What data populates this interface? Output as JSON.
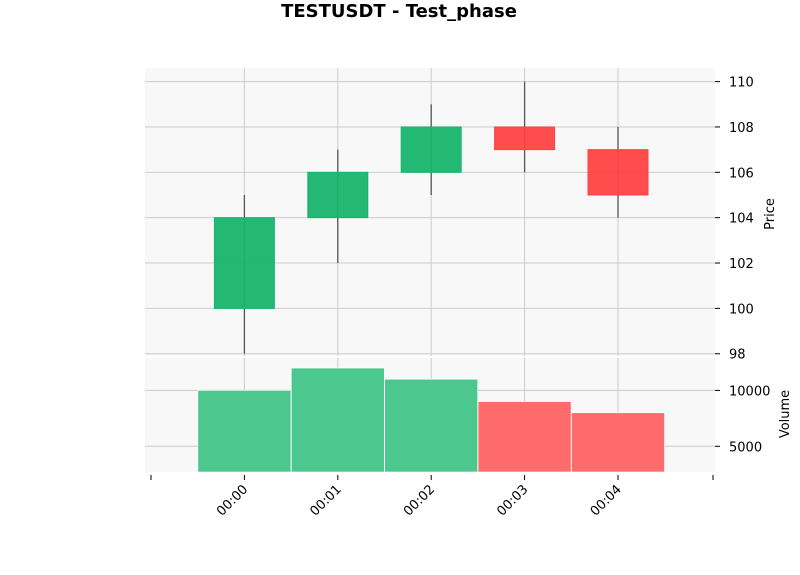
{
  "chart_data": {
    "type": "candlestick",
    "title": "TESTUSDT - Test_phase",
    "categories": [
      "00:00",
      "00:01",
      "00:02",
      "00:03",
      "00:04"
    ],
    "candles": [
      {
        "open": 100,
        "high": 105,
        "low": 98,
        "close": 104
      },
      {
        "open": 104,
        "high": 107,
        "low": 102,
        "close": 106
      },
      {
        "open": 106,
        "high": 109,
        "low": 105,
        "close": 108
      },
      {
        "open": 108,
        "high": 110,
        "low": 106,
        "close": 107
      },
      {
        "open": 107,
        "high": 108,
        "low": 104,
        "close": 105
      }
    ],
    "volume": [
      10000,
      12000,
      11000,
      9000,
      8000
    ],
    "price_panel": {
      "ylabel": "Price",
      "ylim": [
        97.9,
        110.6
      ],
      "yticks": [
        98,
        100,
        102,
        104,
        106,
        108,
        110
      ]
    },
    "volume_panel": {
      "ylabel": "Volume",
      "ylim": [
        2700,
        12900
      ],
      "yticks": [
        5000,
        10000
      ]
    },
    "colors": {
      "up": "#18b46e",
      "down": "#ff4242",
      "up_volume": "#4cc88f",
      "down_volume": "#ff6b6b",
      "panel_background": "#f8f8f8",
      "grid": "#cccccc"
    },
    "grid": true
  }
}
